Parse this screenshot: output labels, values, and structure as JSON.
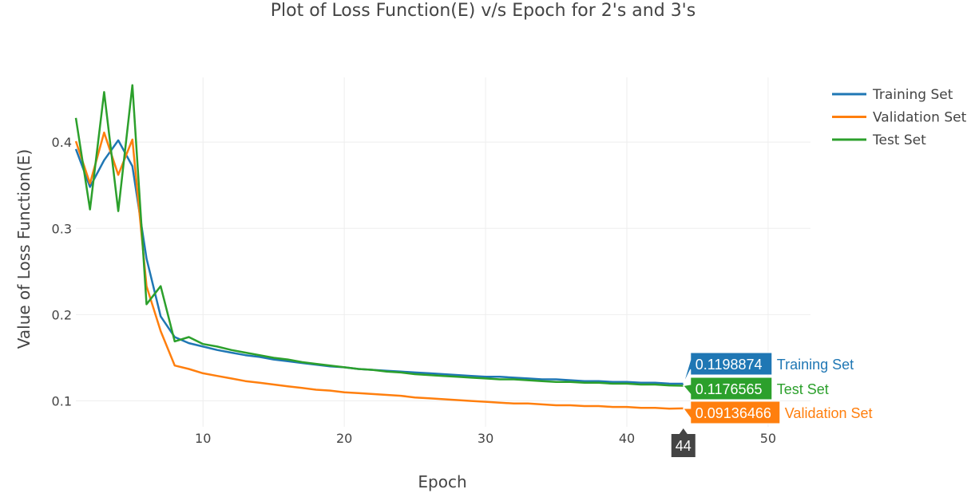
{
  "chart_data": {
    "type": "line",
    "title": "Plot of Loss Function(E) v/s Epoch for 2's and 3's",
    "xlabel": "Epoch",
    "ylabel": "Value of Loss Function(E)",
    "xlim": [
      1,
      53
    ],
    "ylim": [
      0.07,
      0.475
    ],
    "xticks": [
      10,
      20,
      30,
      40,
      50
    ],
    "yticks": [
      0.1,
      0.2,
      0.3,
      0.4
    ],
    "xtick_labels": [
      "10",
      "20",
      "30",
      "40",
      "50"
    ],
    "ytick_labels": [
      "0.1",
      "0.2",
      "0.3",
      "0.4"
    ],
    "grid": true,
    "legend_position": "top-right",
    "x": [
      1,
      2,
      3,
      4,
      5,
      6,
      7,
      8,
      9,
      10,
      11,
      12,
      13,
      14,
      15,
      16,
      17,
      18,
      19,
      20,
      21,
      22,
      23,
      24,
      25,
      26,
      27,
      28,
      29,
      30,
      31,
      32,
      33,
      34,
      35,
      36,
      37,
      38,
      39,
      40,
      41,
      42,
      43,
      44
    ],
    "series": [
      {
        "name": "Training Set",
        "color": "#1f77b4",
        "values": [
          0.392,
          0.348,
          0.379,
          0.402,
          0.372,
          0.265,
          0.198,
          0.174,
          0.167,
          0.163,
          0.159,
          0.156,
          0.153,
          0.151,
          0.148,
          0.146,
          0.144,
          0.142,
          0.14,
          0.139,
          0.137,
          0.136,
          0.135,
          0.134,
          0.133,
          0.132,
          0.131,
          0.13,
          0.129,
          0.128,
          0.128,
          0.127,
          0.126,
          0.125,
          0.125,
          0.124,
          0.123,
          0.123,
          0.122,
          0.122,
          0.121,
          0.121,
          0.12,
          0.1198874
        ]
      },
      {
        "name": "Validation Set",
        "color": "#ff7f0e",
        "values": [
          0.401,
          0.352,
          0.411,
          0.362,
          0.403,
          0.233,
          0.181,
          0.141,
          0.137,
          0.132,
          0.129,
          0.126,
          0.123,
          0.121,
          0.119,
          0.117,
          0.115,
          0.113,
          0.112,
          0.11,
          0.109,
          0.108,
          0.107,
          0.106,
          0.104,
          0.103,
          0.102,
          0.101,
          0.1,
          0.099,
          0.098,
          0.097,
          0.097,
          0.096,
          0.095,
          0.095,
          0.094,
          0.094,
          0.093,
          0.093,
          0.092,
          0.092,
          0.091,
          0.09136466
        ]
      },
      {
        "name": "Test Set",
        "color": "#2ca02c",
        "values": [
          0.428,
          0.322,
          0.458,
          0.32,
          0.466,
          0.212,
          0.233,
          0.169,
          0.174,
          0.166,
          0.163,
          0.159,
          0.156,
          0.153,
          0.15,
          0.148,
          0.145,
          0.143,
          0.141,
          0.139,
          0.137,
          0.136,
          0.134,
          0.133,
          0.131,
          0.13,
          0.129,
          0.128,
          0.127,
          0.126,
          0.125,
          0.125,
          0.124,
          0.123,
          0.122,
          0.122,
          0.121,
          0.121,
          0.12,
          0.12,
          0.119,
          0.119,
          0.118,
          0.1176565
        ]
      }
    ],
    "hover": {
      "x_label": "44",
      "labels": [
        {
          "name": "Training Set",
          "value": "0.1198874",
          "color": "#1f77b4",
          "text_color": "#1f77b4"
        },
        {
          "name": "Test Set",
          "value": "0.1176565",
          "color": "#2ca02c",
          "text_color": "#2ca02c"
        },
        {
          "name": "Validation Set",
          "value": "0.09136466",
          "color": "#ff7f0e",
          "text_color": "#ff7f0e"
        }
      ]
    }
  }
}
